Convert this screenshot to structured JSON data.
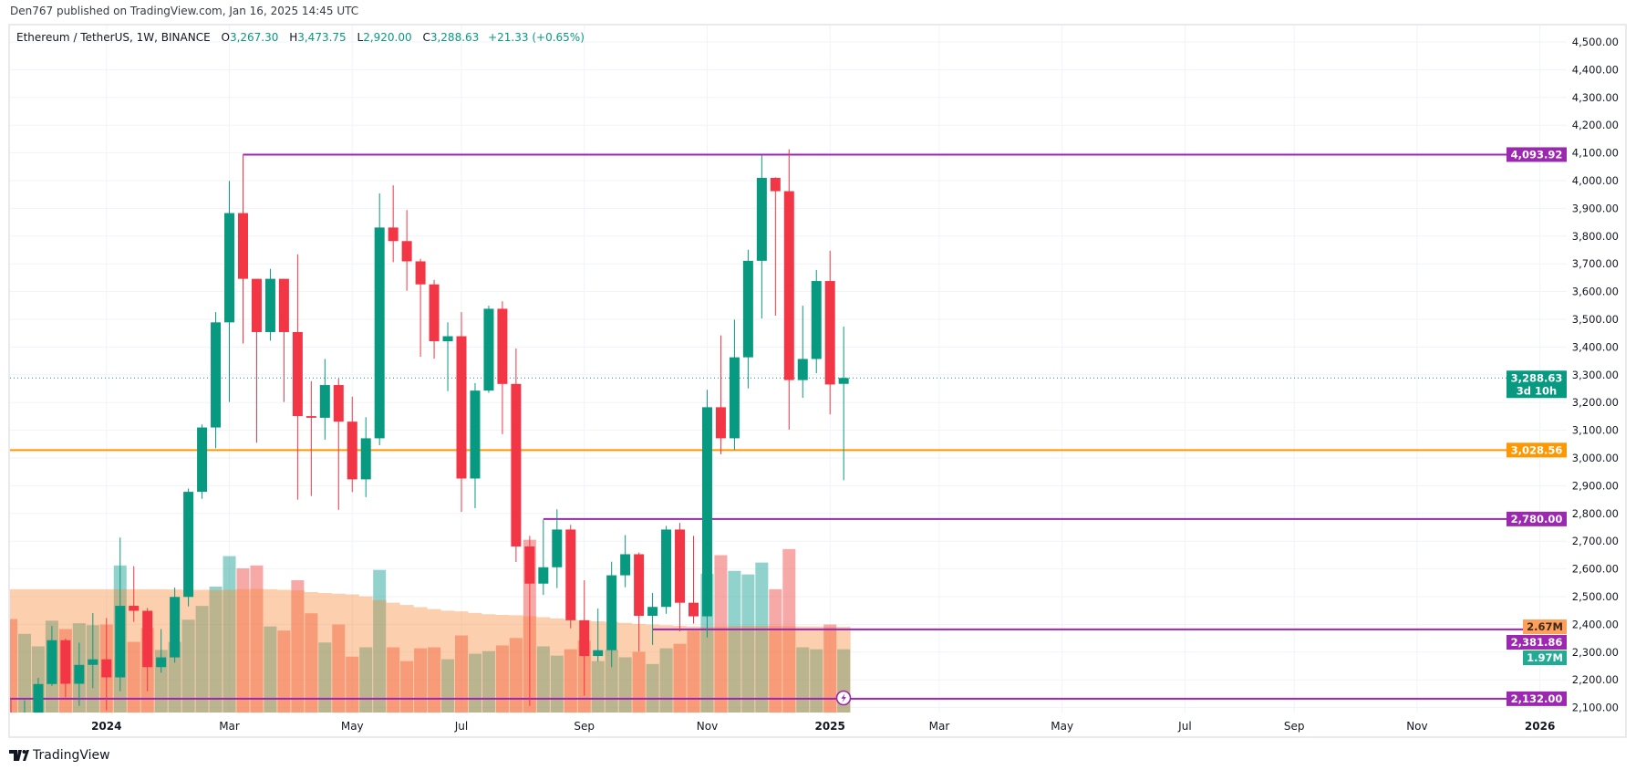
{
  "header": {
    "publish_note": "Den767 published on TradingView.com, Jan 16, 2025 14:45 UTC"
  },
  "legend": {
    "symbol": "Ethereum / TetherUS, 1W, BINANCE",
    "open_label": "O",
    "open": "3,267.30",
    "high_label": "H",
    "high": "3,473.75",
    "low_label": "L",
    "low": "2,920.00",
    "close_label": "C",
    "close": "3,288.63",
    "change": "+21.33 (+0.65%)"
  },
  "footer": {
    "brand": "TradingView",
    "logo_icon": "tradingview-logo-icon"
  },
  "colors": {
    "up": "#089981",
    "down": "#f23645",
    "level_purple": "#9c27b0",
    "level_orange": "#ff9800",
    "volume_ma": "#f7a15e",
    "volume_up": "#26a69a",
    "grid": "#f0f3fa"
  },
  "chart_data": {
    "type": "candlestick",
    "interval": "1W",
    "grid": true,
    "ylim": [
      2080,
      4560
    ],
    "y_ticks": [
      2100,
      2200,
      2300,
      2400,
      2500,
      2600,
      2700,
      2800,
      2900,
      3000,
      3100,
      3200,
      3300,
      3400,
      3500,
      3600,
      3700,
      3800,
      3900,
      4000,
      4100,
      4200,
      4300,
      4400,
      4500
    ],
    "x_ticks": [
      {
        "label": "2024",
        "date": "2024-01-01",
        "bold": true
      },
      {
        "label": "Mar",
        "date": "2024-03-04"
      },
      {
        "label": "May",
        "date": "2024-05-06"
      },
      {
        "label": "Jul",
        "date": "2024-07-01"
      },
      {
        "label": "Sep",
        "date": "2024-09-02"
      },
      {
        "label": "Nov",
        "date": "2024-11-04"
      },
      {
        "label": "2025",
        "date": "2025-01-06",
        "bold": true
      },
      {
        "label": "Mar",
        "date": "2025-03-03"
      },
      {
        "label": "May",
        "date": "2025-05-05"
      },
      {
        "label": "Jul",
        "date": "2025-07-07"
      },
      {
        "label": "Sep",
        "date": "2025-09-01"
      },
      {
        "label": "Nov",
        "date": "2025-11-03"
      },
      {
        "label": "2026",
        "date": "2026-01-05",
        "bold": true
      }
    ],
    "dates": [
      "2023-11-13",
      "2023-11-20",
      "2023-11-27",
      "2023-12-04",
      "2023-12-11",
      "2023-12-18",
      "2023-12-25",
      "2024-01-01",
      "2024-01-08",
      "2024-01-15",
      "2024-01-22",
      "2024-01-29",
      "2024-02-05",
      "2024-02-12",
      "2024-02-19",
      "2024-02-26",
      "2024-03-04",
      "2024-03-11",
      "2024-03-18",
      "2024-03-25",
      "2024-04-01",
      "2024-04-08",
      "2024-04-15",
      "2024-04-22",
      "2024-04-29",
      "2024-05-06",
      "2024-05-13",
      "2024-05-20",
      "2024-05-27",
      "2024-06-03",
      "2024-06-10",
      "2024-06-17",
      "2024-06-24",
      "2024-07-01",
      "2024-07-08",
      "2024-07-15",
      "2024-07-22",
      "2024-07-29",
      "2024-08-05",
      "2024-08-12",
      "2024-08-19",
      "2024-08-26",
      "2024-09-02",
      "2024-09-09",
      "2024-09-16",
      "2024-09-23",
      "2024-09-30",
      "2024-10-07",
      "2024-10-14",
      "2024-10-21",
      "2024-10-28",
      "2024-11-04",
      "2024-11-11",
      "2024-11-18",
      "2024-11-25",
      "2024-12-02",
      "2024-12-09",
      "2024-12-16",
      "2024-12-23",
      "2024-12-30",
      "2025-01-06",
      "2025-01-13"
    ],
    "open": [
      2050,
      2013,
      2063,
      2185,
      2343,
      2186,
      2254,
      2274,
      2209,
      2467,
      2449,
      2246,
      2281,
      2499,
      2878,
      3110,
      3489,
      3883,
      3646,
      3454,
      3646,
      3454,
      3151,
      3145,
      3263,
      3131,
      2923,
      3071,
      3831,
      3782,
      3709,
      3626,
      3421,
      3439,
      2926,
      3243,
      3538,
      3267,
      2681,
      2547,
      2606,
      2742,
      2415,
      2286,
      2307,
      2577,
      2653,
      2431,
      2463,
      2742,
      2478,
      2429,
      3183,
      3071,
      3363,
      3711,
      4010,
      3962,
      3281,
      3357,
      3638,
      3267.3
    ],
    "high": [
      2135,
      2126,
      2207,
      2394,
      2349,
      2334,
      2441,
      2423,
      2713,
      2610,
      2459,
      2383,
      2533,
      2890,
      3121,
      3526,
      3999,
      4093.92,
      3646,
      3682,
      3646,
      3734,
      3277,
      3357,
      3286,
      3221,
      3147,
      3954,
      3983,
      3894,
      3718,
      3642,
      3489,
      3526,
      3270,
      3549,
      3565,
      3395,
      2719,
      2777,
      2815,
      2759,
      2559,
      2457,
      2626,
      2722,
      2659,
      2513,
      2755,
      2766,
      2719,
      3246,
      3442,
      3499,
      3751,
      4093,
      4012,
      4113,
      3549,
      3678,
      3747,
      3473.75
    ],
    "low": [
      1935,
      1995,
      2045,
      2178,
      2137,
      2106,
      2170,
      2090,
      2159,
      2409,
      2159,
      2226,
      2262,
      2465,
      2853,
      3035,
      3202,
      3413,
      3055,
      3423,
      3202,
      2850,
      2863,
      3066,
      2813,
      2877,
      2859,
      3046,
      3706,
      3603,
      3365,
      3358,
      3241,
      2806,
      2819,
      3235,
      3086,
      2625,
      2106,
      2506,
      2531,
      2386,
      2143,
      2266,
      2246,
      2534,
      2302,
      2326,
      2438,
      2375,
      2403,
      2353,
      3013,
      3029,
      3251,
      3503,
      3513,
      3102,
      3217,
      3306,
      3157,
      2920.0
    ],
    "close": [
      2013,
      2063,
      2185,
      2343,
      2186,
      2254,
      2274,
      2209,
      2467,
      2449,
      2246,
      2281,
      2499,
      2878,
      3110,
      3489,
      3883,
      3646,
      3454,
      3646,
      3454,
      3151,
      3145,
      3263,
      3131,
      2923,
      3071,
      3831,
      3782,
      3709,
      3626,
      3421,
      3439,
      2926,
      3243,
      3538,
      3267,
      2681,
      2547,
      2606,
      2742,
      2415,
      2286,
      2307,
      2577,
      2653,
      2431,
      2463,
      2742,
      2478,
      2429,
      3183,
      3071,
      3363,
      3711,
      4010,
      3962,
      3281,
      3357,
      3638,
      3265,
      3288.63
    ],
    "volume_millions": [
      2.91,
      2.45,
      2.06,
      2.86,
      2.6,
      2.78,
      2.72,
      2.74,
      4.58,
      2.2,
      2.63,
      1.95,
      2.2,
      2.89,
      3.32,
      3.92,
      4.87,
      4.49,
      4.58,
      2.68,
      2.55,
      4.12,
      3.09,
      2.18,
      2.74,
      1.74,
      2.03,
      4.44,
      2.03,
      1.6,
      2.0,
      2.03,
      1.66,
      2.4,
      1.83,
      1.91,
      2.09,
      2.32,
      5.38,
      2.06,
      1.77,
      1.97,
      2.24,
      1.6,
      1.95,
      1.72,
      1.89,
      1.51,
      2.0,
      2.14,
      2.55,
      4.32,
      4.9,
      4.41,
      4.3,
      4.67,
      3.84,
      5.09,
      2.03,
      1.97,
      2.74,
      1.97
    ],
    "volume_ma_millions": [
      3.84,
      3.84,
      3.84,
      3.84,
      3.84,
      3.84,
      3.84,
      3.84,
      3.84,
      3.84,
      3.84,
      3.84,
      3.83,
      3.82,
      3.82,
      3.81,
      3.82,
      3.84,
      3.85,
      3.84,
      3.82,
      3.8,
      3.75,
      3.72,
      3.7,
      3.68,
      3.62,
      3.5,
      3.42,
      3.35,
      3.28,
      3.22,
      3.17,
      3.15,
      3.1,
      3.06,
      3.04,
      3.03,
      3.0,
      2.97,
      2.93,
      2.9,
      2.87,
      2.84,
      2.82,
      2.79,
      2.76,
      2.74,
      2.72,
      2.7,
      2.68,
      2.67,
      2.68,
      2.69,
      2.7,
      2.7,
      2.7,
      2.69,
      2.68,
      2.68,
      2.67,
      2.67
    ],
    "levels": [
      {
        "price": 4093.92,
        "label": "4,093.92",
        "color": "#9c27b0",
        "from": "2024-03-11"
      },
      {
        "price": 3028.56,
        "label": "3,028.56",
        "color": "#ff9800",
        "from": null
      },
      {
        "price": 2780.0,
        "label": "2,780.00",
        "color": "#9c27b0",
        "from": "2024-08-12"
      },
      {
        "price": 2381.86,
        "label": "2,381.86",
        "color": "#9c27b0",
        "from": "2024-10-07"
      },
      {
        "price": 2132.0,
        "label": "2,132.00",
        "color": "#9c27b0",
        "from": null
      }
    ],
    "last_price": {
      "price": 3288.63,
      "label": "3,288.63",
      "countdown": "3d 10h",
      "color": "#089981"
    },
    "volume_labels": [
      {
        "value": 2.67,
        "label": "2.67M",
        "bg": "#ff9f5a",
        "fg": "#3a2a1a"
      },
      {
        "value": 1.97,
        "label": "1.97M",
        "bg": "#22ab94",
        "fg": "#ffffff"
      }
    ]
  }
}
